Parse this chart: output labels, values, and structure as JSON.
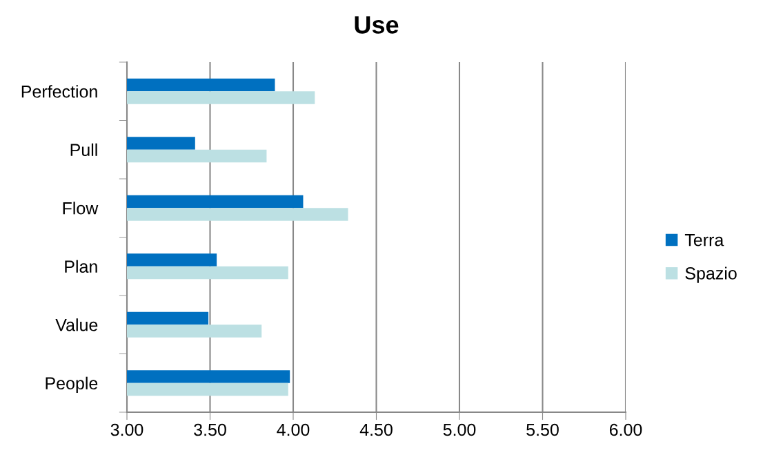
{
  "chart_data": {
    "type": "bar",
    "orientation": "horizontal",
    "title": "Use",
    "categories": [
      "Perfection",
      "Pull",
      "Flow",
      "Plan",
      "Value",
      "People"
    ],
    "series": [
      {
        "name": "Terra",
        "color": "#0070c0",
        "values": [
          3.89,
          3.41,
          4.06,
          3.54,
          3.49,
          3.98
        ]
      },
      {
        "name": "Spazio",
        "color": "#bce0e3",
        "values": [
          4.13,
          3.84,
          4.33,
          3.97,
          3.81,
          3.97
        ]
      }
    ],
    "xlim": [
      3,
      6
    ],
    "xticks": [
      {
        "value": 3,
        "label": "3.00"
      },
      {
        "value": 3.5,
        "label": "3.50"
      },
      {
        "value": 4,
        "label": "4.00"
      },
      {
        "value": 4.5,
        "label": "4.50"
      },
      {
        "value": 5,
        "label": "5.00"
      },
      {
        "value": 5.5,
        "label": "5.50"
      },
      {
        "value": 6,
        "label": "6.00"
      }
    ],
    "grid": "x",
    "legend": "right"
  }
}
